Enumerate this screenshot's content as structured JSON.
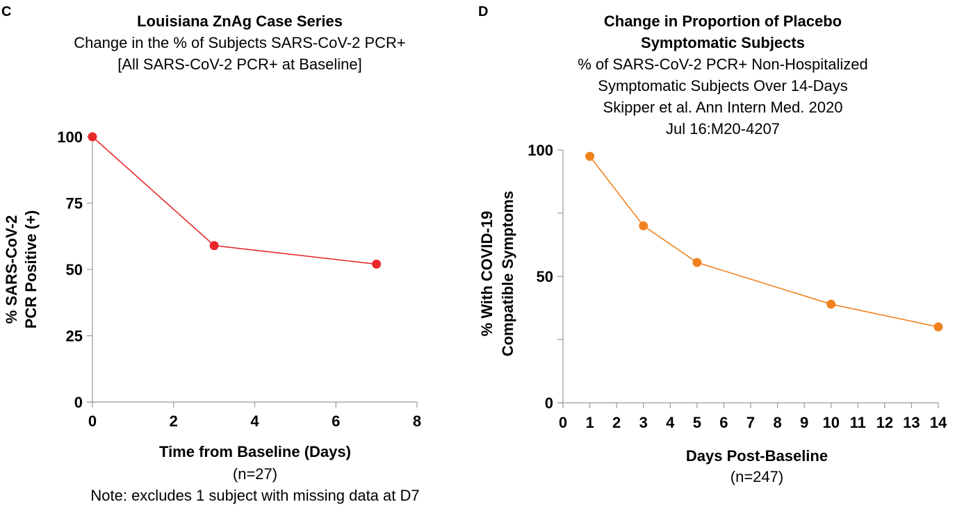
{
  "panels": {
    "c": {
      "letter": "C",
      "title": "Louisiana ZnAg Case Series",
      "subtitle_lines": [
        "Change in the % of Subjects SARS-CoV-2 PCR+",
        "[All SARS-CoV-2 PCR+ at Baseline]"
      ],
      "ylabel_lines": [
        "% SARS-CoV-2",
        "PCR Positive (+)"
      ],
      "xlabel": "Time from Baseline (Days)",
      "n_label": "(n=27)",
      "note": "Note: excludes 1 subject with missing data at D7",
      "color": "#e8282b"
    },
    "d": {
      "letter": "D",
      "title_lines": [
        "Change in Proportion of Placebo",
        "Symptomatic Subjects"
      ],
      "subtitle_lines": [
        "% of SARS-CoV-2 PCR+ Non-Hospitalized",
        "Symptomatic Subjects Over 14-Days",
        "Skipper et al. Ann Intern Med. 2020",
        "Jul 16:M20-4207"
      ],
      "ylabel_lines": [
        "% With COVID-19",
        "Compatible Symptoms"
      ],
      "xlabel": "Days Post-Baseline",
      "n_label": "(n=247)",
      "color": "#f0821e"
    }
  },
  "chart_data": [
    {
      "type": "line",
      "title": "Louisiana ZnAg Case Series",
      "subtitle": "Change in the % of Subjects SARS-CoV-2 PCR+ [All SARS-CoV-2 PCR+ at Baseline]",
      "xlabel": "Time from Baseline (Days)",
      "ylabel": "% SARS-CoV-2 PCR Positive (+)",
      "x": [
        0,
        3,
        7
      ],
      "series": [
        {
          "name": "ZnAg",
          "values": [
            100,
            59,
            52
          ]
        }
      ],
      "xlim": [
        0,
        8
      ],
      "ylim": [
        0,
        100
      ],
      "xticks": [
        "0",
        "2",
        "4",
        "6",
        "8"
      ],
      "yticks": [
        "0",
        "25",
        "50",
        "75",
        "100"
      ],
      "grid": false,
      "legend": "none"
    },
    {
      "type": "line",
      "title": "Change in Proportion of Placebo Symptomatic Subjects",
      "subtitle": "% of SARS-CoV-2 PCR+ Non-Hospitalized Symptomatic Subjects Over 14-Days; Skipper et al. Ann Intern Med. 2020 Jul 16:M20-4207",
      "xlabel": "Days Post-Baseline",
      "ylabel": "% With COVID-19 Compatible Symptoms",
      "x": [
        1,
        3,
        5,
        10,
        14
      ],
      "series": [
        {
          "name": "Placebo",
          "values": [
            97.5,
            70,
            55.5,
            39,
            30
          ]
        }
      ],
      "xlim": [
        0,
        14
      ],
      "ylim": [
        0,
        100
      ],
      "xticks": [
        "0",
        "1",
        "2",
        "3",
        "4",
        "5",
        "6",
        "7",
        "8",
        "9",
        "10",
        "11",
        "12",
        "13",
        "14"
      ],
      "yticks": [
        "0",
        "",
        "50",
        "",
        "100"
      ],
      "yminor_ticks": [
        25,
        75
      ],
      "grid": false,
      "legend": "none"
    }
  ]
}
